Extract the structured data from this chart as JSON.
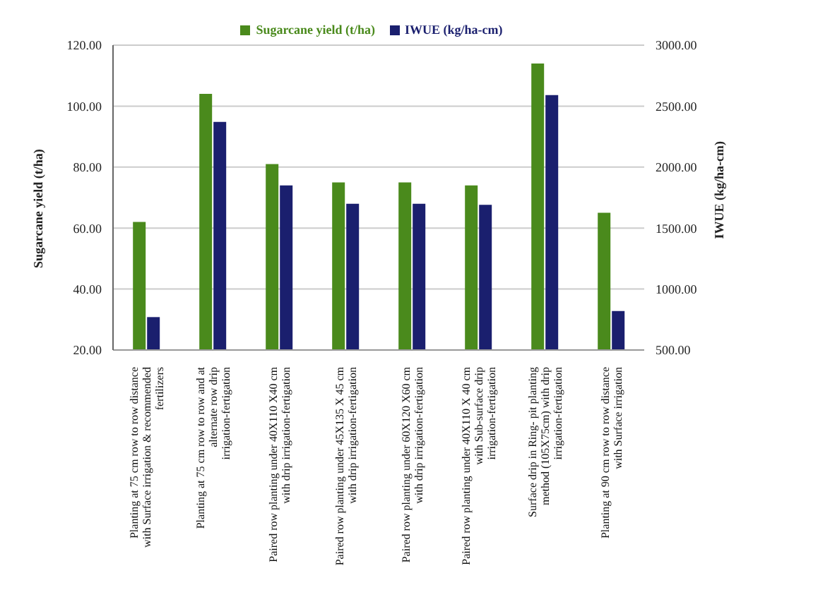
{
  "chart_data": {
    "type": "bar",
    "categories": [
      "Planting at 75 cm row to row distance with Surface irrigation & recommended fertilizers",
      "Planting at 75 cm row to row and at alternate row drip irrigation-fertigation",
      "Paired row planting under 40X110 X40 cm with drip irrigation-fertigation",
      "Paired row planting under 45X135 X 45 cm with drip irrigation-fertigation",
      "Paired row planting under 60X120 X60 cm with drip irrigation-fertigation",
      "Paired row planting under 40X110 X 40 cm with Sub-surface drip irrigation-fertigation",
      "Surface drip in Ring- pit planting method (105X75cm) with drip irrigation-fertigation",
      "Planting at 90 cm row to row distance with Surface irrigation"
    ],
    "series": [
      {
        "name": "Sugarcane yield (t/ha)",
        "color": "#4a8a1c",
        "values": [
          62,
          104,
          81,
          75,
          75,
          74,
          114,
          65
        ]
      },
      {
        "name": "IWUE (kg/ha-cm)",
        "color": "#1a1f6e",
        "axis": "y2",
        "values": [
          770,
          2370,
          1850,
          1700,
          1700,
          1690,
          2590,
          820
        ]
      }
    ],
    "ylabel": "Sugarcane yield (t/ha)",
    "y2label": "IWUE (kg/ha-cm)",
    "ylim": [
      20,
      120
    ],
    "yticks": [
      {
        "value": 20,
        "label": "20.00"
      },
      {
        "value": 40,
        "label": "40.00"
      },
      {
        "value": 60,
        "label": "60.00"
      },
      {
        "value": 80,
        "label": "80.00"
      },
      {
        "value": 100,
        "label": "100.00"
      },
      {
        "value": 120,
        "label": "120.00"
      }
    ],
    "y2lim": [
      500,
      3000
    ],
    "y2ticks": [
      {
        "value": 500,
        "label": "500.00"
      },
      {
        "value": 1000,
        "label": "1000.00"
      },
      {
        "value": 1500,
        "label": "1500.00"
      },
      {
        "value": 2000,
        "label": "2000.00"
      },
      {
        "value": 2500,
        "label": "2500.00"
      },
      {
        "value": 3000,
        "label": "3000.00"
      }
    ],
    "grid": "y",
    "legend": "top"
  }
}
